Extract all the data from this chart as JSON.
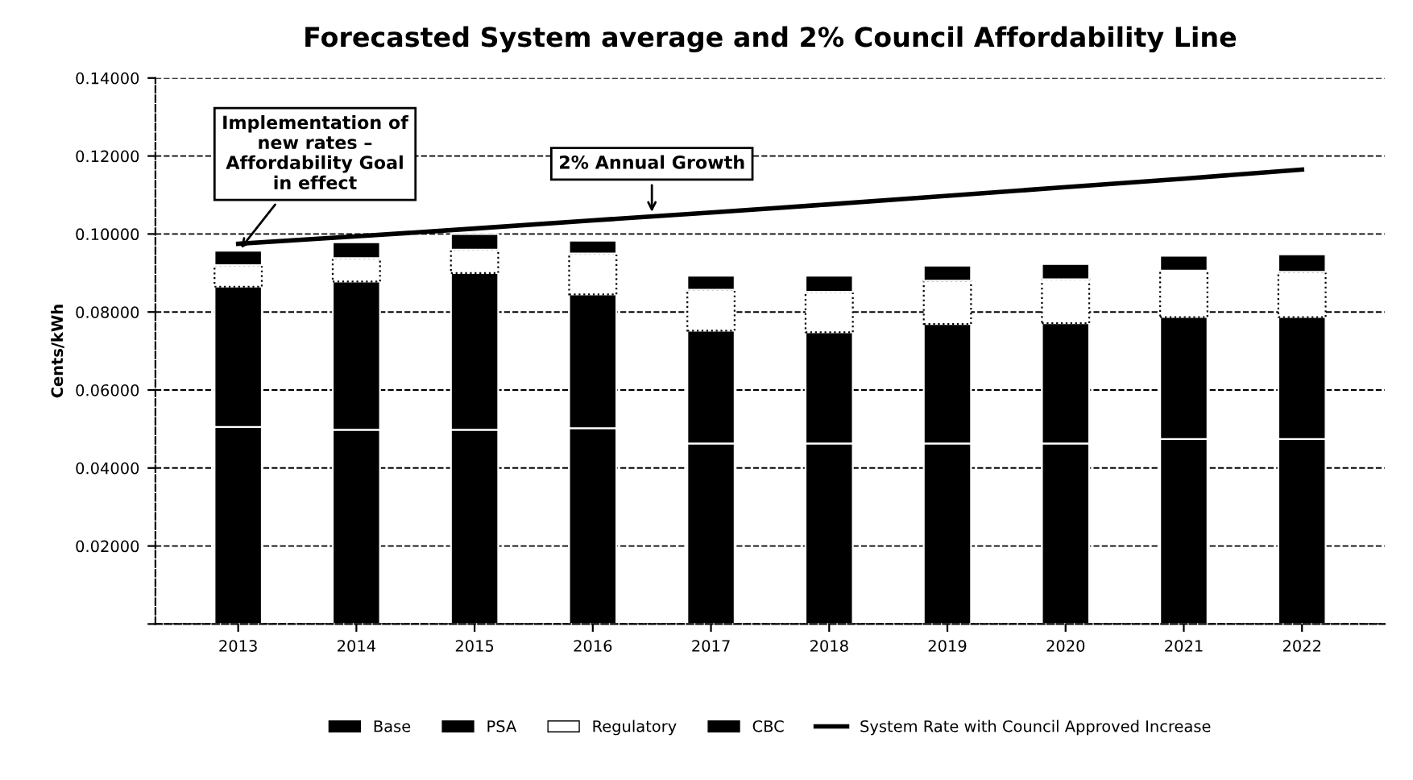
{
  "chart_data": {
    "type": "bar",
    "title": "Forecasted System average and 2% Council Affordability Line",
    "ylabel": "Cents/kWh",
    "categories": [
      "2013",
      "2014",
      "2015",
      "2016",
      "2017",
      "2018",
      "2019",
      "2020",
      "2021",
      "2022"
    ],
    "stacked": true,
    "series": [
      {
        "name": "Base",
        "color": "#000000",
        "values": [
          0.0505,
          0.0498,
          0.0498,
          0.0502,
          0.0463,
          0.0463,
          0.0463,
          0.0463,
          0.0474,
          0.0474
        ]
      },
      {
        "name": "PSA",
        "color": "#000000",
        "values": [
          0.036,
          0.038,
          0.0402,
          0.0343,
          0.0289,
          0.0285,
          0.0306,
          0.0308,
          0.0313,
          0.0313
        ]
      },
      {
        "name": "Regulatory",
        "color": "#ffffff",
        "values": [
          0.0055,
          0.006,
          0.006,
          0.0105,
          0.0105,
          0.0104,
          0.0111,
          0.0113,
          0.0119,
          0.0116
        ]
      },
      {
        "name": "CBC",
        "color": "#000000",
        "values": [
          0.0037,
          0.0041,
          0.004,
          0.0033,
          0.0036,
          0.0041,
          0.0039,
          0.0039,
          0.0038,
          0.0045
        ]
      },
      {
        "name": "System Rate with Council Approved Increase",
        "type": "line",
        "color": "#000000",
        "values": [
          0.0975,
          0.0994,
          0.1014,
          0.1035,
          0.1055,
          0.1076,
          0.1098,
          0.112,
          0.1142,
          0.1165
        ]
      }
    ],
    "ylim": [
      0,
      0.14
    ],
    "yticks": [
      {
        "value": 0,
        "label": null
      },
      {
        "value": 0.02,
        "label": "0.02000"
      },
      {
        "value": 0.04,
        "label": "0.04000"
      },
      {
        "value": 0.06,
        "label": "0.06000"
      },
      {
        "value": 0.08,
        "label": "0.08000"
      },
      {
        "value": 0.1,
        "label": "0.10000"
      },
      {
        "value": 0.12,
        "label": "0.12000"
      },
      {
        "value": 0.14,
        "label": "0.14000"
      }
    ],
    "grid": "y",
    "legend": "bottom",
    "marker": "none",
    "line_style": "solid",
    "annotations": [
      {
        "text": "Implementation of\nnew rates –\nAffordability Goal\nin effect",
        "x": "2013",
        "y": 0.0955
      },
      "2% Annual Growth"
    ]
  }
}
